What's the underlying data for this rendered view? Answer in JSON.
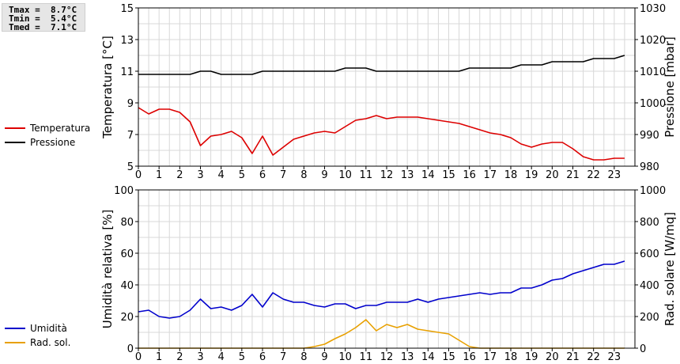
{
  "stats": {
    "tmax": "Tmax =  8.7°C",
    "tmin": "Tmin =  5.4°C",
    "tmed": "Tmed =  7.1°C"
  },
  "chart_data": [
    {
      "type": "line",
      "grid": true,
      "xlabel": "",
      "x_ticks": [
        0,
        1,
        2,
        3,
        4,
        5,
        6,
        7,
        8,
        9,
        10,
        11,
        12,
        13,
        14,
        15,
        16,
        17,
        18,
        19,
        20,
        21,
        22,
        23
      ],
      "xlim": [
        0,
        24
      ],
      "y_left": {
        "label": "Temperatura [°C]",
        "lim": [
          5,
          15
        ],
        "ticks": [
          5,
          7,
          9,
          11,
          13,
          15
        ]
      },
      "y_right": {
        "label": "Pressione [mbar]",
        "lim": [
          980,
          1030
        ],
        "ticks": [
          980,
          990,
          1000,
          1010,
          1020,
          1030
        ]
      },
      "legend": [
        "Temperatura",
        "Pressione"
      ],
      "series": [
        {
          "name": "Temperatura",
          "axis": "left",
          "color": "#dd0000",
          "x": [
            0,
            0.5,
            1,
            1.5,
            2,
            2.5,
            3,
            3.5,
            4,
            4.5,
            5,
            5.5,
            6,
            6.5,
            7,
            7.5,
            8,
            8.5,
            9,
            9.5,
            10,
            10.5,
            11,
            11.5,
            12,
            12.5,
            13,
            13.5,
            14,
            14.5,
            15,
            15.5,
            16,
            16.5,
            17,
            17.5,
            18,
            18.5,
            19,
            19.5,
            20,
            20.5,
            21,
            21.5,
            22,
            22.5,
            23,
            23.5
          ],
          "y": [
            8.7,
            8.3,
            8.6,
            8.6,
            8.4,
            7.8,
            6.3,
            6.9,
            7.0,
            7.2,
            6.8,
            5.8,
            6.9,
            5.7,
            6.2,
            6.7,
            6.9,
            7.1,
            7.2,
            7.1,
            7.5,
            7.9,
            8.0,
            8.2,
            8.0,
            8.1,
            8.1,
            8.1,
            8.0,
            7.9,
            7.8,
            7.7,
            7.5,
            7.3,
            7.1,
            7.0,
            6.8,
            6.4,
            6.2,
            6.4,
            6.5,
            6.5,
            6.1,
            5.6,
            5.4,
            5.4,
            5.5,
            5.5
          ]
        },
        {
          "name": "Pressione",
          "axis": "right",
          "color": "#000000",
          "x": [
            0,
            0.5,
            1,
            1.5,
            2,
            2.5,
            3,
            3.5,
            4,
            4.5,
            5,
            5.5,
            6,
            6.5,
            7,
            7.5,
            8,
            8.5,
            9,
            9.5,
            10,
            10.5,
            11,
            11.5,
            12,
            12.5,
            13,
            13.5,
            14,
            14.5,
            15,
            15.5,
            16,
            16.5,
            17,
            17.5,
            18,
            18.5,
            19,
            19.5,
            20,
            20.5,
            21,
            21.5,
            22,
            22.5,
            23,
            23.5
          ],
          "y": [
            1009,
            1009,
            1009,
            1009,
            1009,
            1009,
            1010,
            1010,
            1009,
            1009,
            1009,
            1009,
            1010,
            1010,
            1010,
            1010,
            1010,
            1010,
            1010,
            1010,
            1011,
            1011,
            1011,
            1010,
            1010,
            1010,
            1010,
            1010,
            1010,
            1010,
            1010,
            1010,
            1011,
            1011,
            1011,
            1011,
            1011,
            1012,
            1012,
            1012,
            1013,
            1013,
            1013,
            1013,
            1014,
            1014,
            1014,
            1015
          ]
        }
      ]
    },
    {
      "type": "line",
      "grid": true,
      "xlabel": "",
      "x_ticks": [
        0,
        1,
        2,
        3,
        4,
        5,
        6,
        7,
        8,
        9,
        10,
        11,
        12,
        13,
        14,
        15,
        16,
        17,
        18,
        19,
        20,
        21,
        22,
        23
      ],
      "xlim": [
        0,
        24
      ],
      "y_left": {
        "label": "Umidità relativa [%]",
        "lim": [
          0,
          100
        ],
        "ticks": [
          0,
          20,
          40,
          60,
          80,
          100
        ]
      },
      "y_right": {
        "label": "Rad. solare [W/mq]",
        "lim": [
          0,
          1000
        ],
        "ticks": [
          0,
          200,
          400,
          600,
          800,
          1000
        ]
      },
      "legend": [
        "Umidità",
        "Rad. sol."
      ],
      "series": [
        {
          "name": "Umidità",
          "axis": "left",
          "color": "#0000cc",
          "x": [
            0,
            0.5,
            1,
            1.5,
            2,
            2.5,
            3,
            3.5,
            4,
            4.5,
            5,
            5.5,
            6,
            6.5,
            7,
            7.5,
            8,
            8.5,
            9,
            9.5,
            10,
            10.5,
            11,
            11.5,
            12,
            12.5,
            13,
            13.5,
            14,
            14.5,
            15,
            15.5,
            16,
            16.5,
            17,
            17.5,
            18,
            18.5,
            19,
            19.5,
            20,
            20.5,
            21,
            21.5,
            22,
            22.5,
            23,
            23.5
          ],
          "y": [
            23,
            24,
            20,
            19,
            20,
            24,
            31,
            25,
            26,
            24,
            27,
            34,
            26,
            35,
            31,
            29,
            29,
            27,
            26,
            28,
            28,
            25,
            27,
            27,
            29,
            29,
            29,
            31,
            29,
            31,
            32,
            33,
            34,
            35,
            34,
            35,
            35,
            38,
            38,
            40,
            43,
            44,
            47,
            49,
            51,
            53,
            53,
            55
          ]
        },
        {
          "name": "Rad. sol.",
          "axis": "right",
          "color": "#e8a000",
          "x": [
            0,
            0.5,
            1,
            1.5,
            2,
            2.5,
            3,
            3.5,
            4,
            4.5,
            5,
            5.5,
            6,
            6.5,
            7,
            7.5,
            8,
            8.5,
            9,
            9.5,
            10,
            10.5,
            11,
            11.5,
            12,
            12.5,
            13,
            13.5,
            14,
            14.5,
            15,
            15.5,
            16,
            16.5,
            17,
            17.5,
            18,
            18.5,
            19,
            19.5,
            20,
            20.5,
            21,
            21.5,
            22,
            22.5,
            23,
            23.5
          ],
          "y": [
            0,
            0,
            0,
            0,
            0,
            0,
            0,
            0,
            0,
            0,
            0,
            0,
            0,
            0,
            0,
            0,
            0,
            10,
            25,
            60,
            90,
            130,
            180,
            110,
            150,
            130,
            150,
            120,
            110,
            100,
            90,
            50,
            10,
            0,
            0,
            0,
            0,
            0,
            0,
            0,
            0,
            0,
            0,
            0,
            0,
            0,
            0,
            0
          ]
        }
      ]
    }
  ]
}
